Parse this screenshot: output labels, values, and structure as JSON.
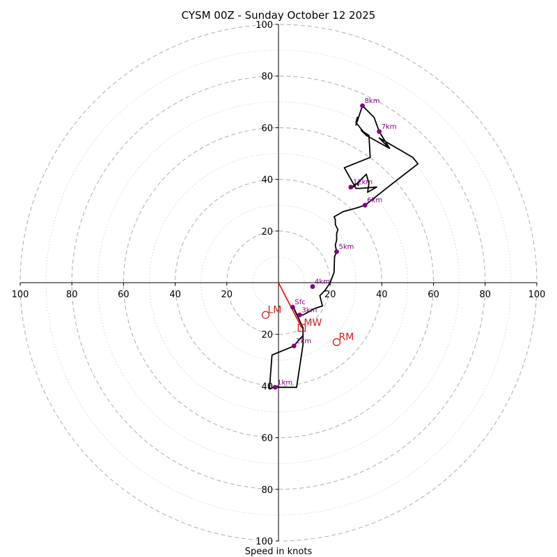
{
  "chart_data": {
    "type": "hodograph",
    "title": "CYSM 00Z - Sunday October 12 2025",
    "xlabel": "Speed in knots",
    "axis_range": [
      -100,
      100
    ],
    "ring_step_major": 20,
    "ring_step_minor": 10,
    "x_ticks": [
      {
        "value": -100,
        "label": "100"
      },
      {
        "value": -80,
        "label": "80"
      },
      {
        "value": -60,
        "label": "60"
      },
      {
        "value": -40,
        "label": "40"
      },
      {
        "value": -20,
        "label": "20"
      },
      {
        "value": 20,
        "label": "20"
      },
      {
        "value": 40,
        "label": "40"
      },
      {
        "value": 60,
        "label": "60"
      },
      {
        "value": 80,
        "label": "80"
      },
      {
        "value": 100,
        "label": "100"
      }
    ],
    "y_ticks": [
      {
        "value": 100,
        "label": "100"
      },
      {
        "value": 80,
        "label": "80"
      },
      {
        "value": 60,
        "label": "60"
      },
      {
        "value": 40,
        "label": "40"
      },
      {
        "value": 20,
        "label": "20"
      },
      {
        "value": -20,
        "label": "20"
      },
      {
        "value": -40,
        "label": "40"
      },
      {
        "value": -60,
        "label": "60"
      },
      {
        "value": -80,
        "label": "80"
      },
      {
        "value": -100,
        "label": "100"
      }
    ],
    "trace": [
      [
        6,
        -10
      ],
      [
        7,
        -12.3
      ],
      [
        9.5,
        -12.5
      ],
      [
        14,
        -10
      ],
      [
        17,
        -9
      ],
      [
        16,
        -5
      ],
      [
        18,
        -3
      ],
      [
        20,
        0
      ],
      [
        21.5,
        4
      ],
      [
        21.7,
        10
      ],
      [
        22.5,
        12
      ],
      [
        22,
        14.5
      ],
      [
        22.5,
        16.5
      ],
      [
        22.5,
        19
      ],
      [
        23,
        20.5
      ],
      [
        22,
        22.5
      ],
      [
        22,
        24.5
      ],
      [
        21.5,
        25.5
      ],
      [
        25,
        27.5
      ],
      [
        30.5,
        29
      ],
      [
        33.5,
        30
      ],
      [
        43,
        37.5
      ],
      [
        54,
        46
      ],
      [
        52,
        48.5
      ],
      [
        46,
        52
      ],
      [
        39,
        56
      ],
      [
        43,
        52
      ],
      [
        34,
        57
      ],
      [
        30,
        62
      ],
      [
        30.5,
        64
      ],
      [
        30,
        61
      ],
      [
        32,
        67
      ],
      [
        32.5,
        68.5
      ],
      [
        37,
        64
      ],
      [
        39,
        58.5
      ],
      [
        43,
        52
      ],
      [
        34,
        57
      ],
      [
        32,
        59
      ],
      [
        35,
        57
      ],
      [
        35.5,
        48.5
      ],
      [
        25.5,
        44.5
      ],
      [
        30,
        36.5
      ],
      [
        31.5,
        36.5
      ],
      [
        38,
        37
      ],
      [
        34.5,
        35
      ],
      [
        35,
        38.5
      ],
      [
        34,
        42
      ],
      [
        29,
        37
      ],
      [
        27.5,
        36.5
      ],
      [
        30.5,
        38.5
      ],
      [
        31,
        37.5
      ]
    ],
    "trace_low": [
      [
        6,
        -10
      ],
      [
        9.5,
        -17.5
      ],
      [
        9.5,
        -20.5
      ],
      [
        8,
        -22
      ],
      [
        6,
        -24.5
      ],
      [
        -2.5,
        -28
      ],
      [
        -3.5,
        -41
      ],
      [
        -1.5,
        -40.5
      ],
      [
        7,
        -40.5
      ],
      [
        9.5,
        -24
      ],
      [
        9.5,
        -20.5
      ]
    ],
    "height_markers": [
      {
        "label": "Sfc",
        "u": 5.5,
        "v": -9.5
      },
      {
        "label": "1km",
        "u": -1.3,
        "v": -40.5
      },
      {
        "label": "2km",
        "u": 6,
        "v": -24.5
      },
      {
        "label": "3km",
        "u": 8.2,
        "v": -12.5
      },
      {
        "label": "4km",
        "u": 13.2,
        "v": -1.5
      },
      {
        "label": "5km",
        "u": 22.5,
        "v": 12
      },
      {
        "label": "6km",
        "u": 33.5,
        "v": 30
      },
      {
        "label": "7km",
        "u": 39,
        "v": 58.5
      },
      {
        "label": "8km",
        "u": 32.5,
        "v": 68.5
      },
      {
        "label": "12km",
        "u": 28,
        "v": 37
      }
    ],
    "motion_vectors": [
      {
        "label": "LM",
        "u": -5,
        "v": -12.5
      },
      {
        "label": "RM",
        "u": 22.5,
        "v": -23
      },
      {
        "label": "MW",
        "u": 9,
        "v": -17.5
      }
    ],
    "colors": {
      "trace": "#000000",
      "markers": "#800080",
      "motion": "#cc2222",
      "mean_wind_line": "#ff0000",
      "rings": "#b4b4b4",
      "axes": "#000000"
    }
  }
}
